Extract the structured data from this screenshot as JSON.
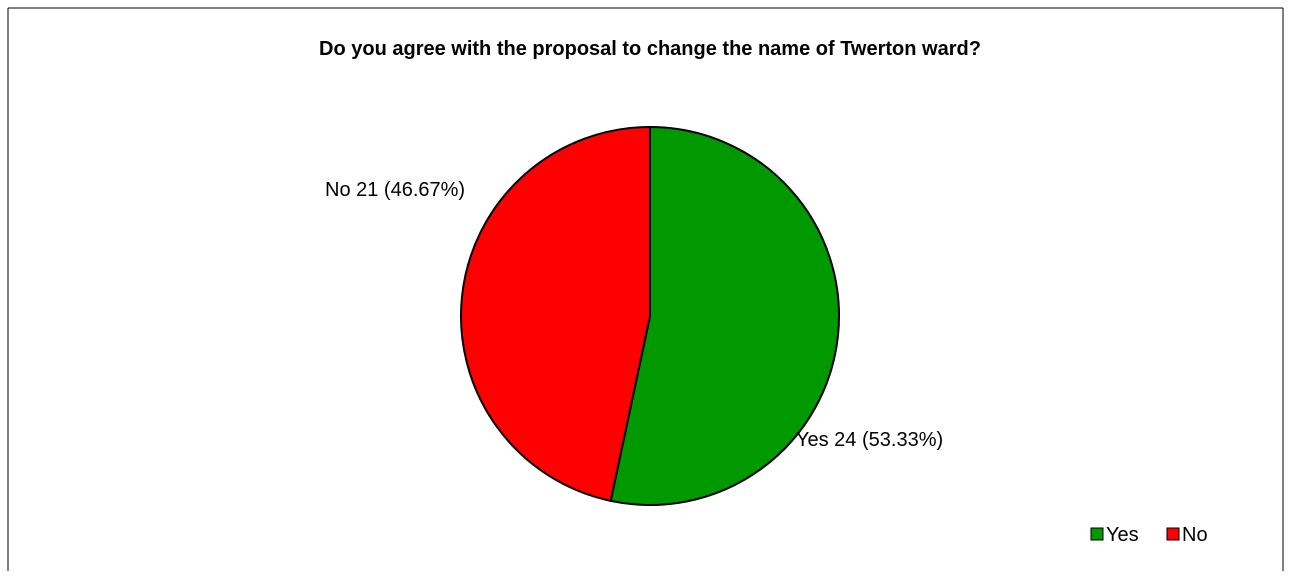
{
  "chart_data": {
    "type": "pie",
    "title": "Do you agree with the proposal to change the name of Twerton ward?",
    "slices": [
      {
        "name": "Yes",
        "value": 24,
        "percent": 53.33,
        "color": "#009900",
        "label": "Yes 24 (53.33%)"
      },
      {
        "name": "No",
        "value": 21,
        "percent": 46.67,
        "color": "#ff0000",
        "label": "No 21 (46.67%)"
      }
    ],
    "legend": {
      "placement": "bottom-right",
      "entries": [
        "Yes",
        "No"
      ]
    }
  }
}
